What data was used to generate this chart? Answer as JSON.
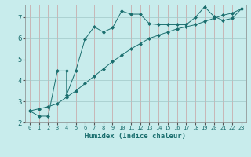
{
  "xlabel": "Humidex (Indice chaleur)",
  "background_color": "#c8ecec",
  "line_color": "#1a6e6e",
  "grid_color_v": "#c8a0a0",
  "grid_color_h": "#a0c8c8",
  "xlim": [
    -0.5,
    23.5
  ],
  "ylim": [
    2.0,
    7.6
  ],
  "yticks": [
    2,
    3,
    4,
    5,
    6,
    7
  ],
  "xticks": [
    0,
    1,
    2,
    3,
    4,
    5,
    6,
    7,
    8,
    9,
    10,
    11,
    12,
    13,
    14,
    15,
    16,
    17,
    18,
    19,
    20,
    21,
    22,
    23
  ],
  "line1_x": [
    0,
    1,
    2,
    3,
    4,
    4,
    5,
    6,
    7,
    8,
    9,
    10,
    11,
    12,
    13,
    14,
    15,
    16,
    17,
    18,
    19,
    20,
    21,
    22,
    23
  ],
  "line1_y": [
    2.55,
    2.3,
    2.3,
    4.45,
    4.45,
    3.3,
    4.45,
    5.95,
    6.55,
    6.3,
    6.5,
    7.3,
    7.15,
    7.15,
    6.7,
    6.65,
    6.65,
    6.65,
    6.65,
    7.0,
    7.5,
    7.05,
    6.85,
    6.95,
    7.4
  ],
  "line2_x": [
    0,
    1,
    2,
    3,
    4,
    5,
    6,
    7,
    8,
    9,
    10,
    11,
    12,
    13,
    14,
    15,
    16,
    17,
    18,
    19,
    20,
    21,
    22,
    23
  ],
  "line2_y": [
    2.55,
    2.65,
    2.75,
    2.9,
    3.2,
    3.5,
    3.85,
    4.2,
    4.55,
    4.9,
    5.2,
    5.5,
    5.75,
    6.0,
    6.15,
    6.3,
    6.45,
    6.55,
    6.65,
    6.8,
    6.95,
    7.1,
    7.2,
    7.4
  ]
}
